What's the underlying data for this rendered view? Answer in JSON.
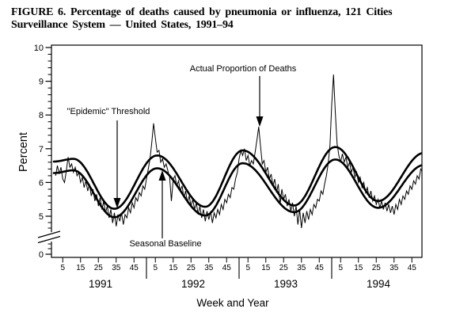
{
  "figure": {
    "caption_line1": "FIGURE 6. Percentage of deaths caused by pneumonia or influenza, 121 Cities",
    "caption_line2": "Surveillance System — United States, 1991–94"
  },
  "colors": {
    "ink": "#000000",
    "paper": "#ffffff"
  },
  "chart_data": {
    "type": "line",
    "title": "FIGURE 6. Percentage of deaths caused by pneumonia or influenza, 121 Cities Surveillance System — United States, 1991–94",
    "xlabel": "Week and Year",
    "ylabel": "Percent",
    "ylim": [
      0,
      10
    ],
    "y_ticks": [
      0,
      5,
      6,
      7,
      8,
      9,
      10
    ],
    "y_axis_break_between": [
      0,
      5
    ],
    "x_week_ticks": [
      5,
      15,
      25,
      35,
      45
    ],
    "years": [
      "1991",
      "1992",
      "1993",
      "1994"
    ],
    "weeks_per_year": 52,
    "x_unit": "surveillance week, consecutive weeks 1991-1994",
    "grid": false,
    "legend": "labels with arrows inside plot",
    "series": [
      {
        "name": "Actual Proportion of Deaths",
        "style": "thin-jagged",
        "x_start_week": 1,
        "values": [
          6.2,
          6.5,
          6.25,
          6.45,
          6.1,
          6.0,
          6.35,
          6.75,
          6.45,
          6.55,
          6.3,
          6.45,
          6.2,
          6.3,
          6.0,
          6.15,
          5.85,
          6.05,
          5.75,
          5.95,
          5.6,
          5.8,
          5.45,
          5.65,
          5.3,
          5.55,
          5.2,
          5.45,
          5.1,
          5.3,
          4.95,
          5.2,
          4.8,
          5.1,
          4.7,
          5.05,
          4.85,
          5.1,
          4.75,
          5.05,
          4.95,
          5.25,
          5.1,
          5.4,
          5.25,
          5.55,
          5.45,
          5.7,
          5.6,
          5.9,
          5.8,
          6.1,
          6.4,
          6.7,
          7.2,
          7.75,
          7.3,
          6.9,
          6.95,
          6.6,
          6.7,
          6.45,
          6.55,
          6.35,
          6.15,
          5.45,
          6.1,
          6.2,
          5.9,
          6.05,
          5.75,
          5.9,
          5.55,
          5.75,
          5.4,
          5.6,
          5.3,
          5.5,
          5.2,
          5.4,
          5.05,
          5.3,
          4.95,
          5.2,
          4.85,
          5.15,
          4.9,
          5.15,
          4.8,
          5.1,
          4.95,
          5.2,
          5.05,
          5.35,
          5.2,
          5.5,
          5.4,
          5.65,
          5.55,
          5.85,
          5.8,
          6.1,
          6.3,
          6.7,
          6.95,
          6.8,
          7.0,
          6.65,
          6.8,
          6.5,
          6.65,
          6.55,
          6.9,
          7.25,
          7.65,
          7.1,
          6.55,
          6.65,
          6.3,
          6.45,
          6.1,
          6.25,
          5.9,
          6.1,
          5.7,
          5.95,
          5.35,
          5.8,
          5.5,
          5.65,
          5.3,
          5.5,
          5.15,
          5.4,
          5.0,
          5.3,
          4.75,
          5.2,
          4.65,
          5.1,
          4.8,
          5.15,
          4.9,
          5.2,
          5.05,
          5.35,
          5.25,
          5.5,
          5.45,
          5.75,
          5.65,
          5.95,
          6.2,
          6.55,
          7.1,
          8.3,
          9.2,
          8.1,
          7.15,
          6.8,
          6.6,
          6.85,
          6.6,
          6.75,
          6.45,
          6.6,
          6.3,
          6.45,
          6.15,
          6.3,
          6.0,
          6.15,
          5.85,
          6.0,
          5.7,
          5.85,
          5.55,
          5.75,
          5.45,
          5.6,
          5.35,
          5.5,
          5.25,
          5.45,
          5.2,
          5.4,
          5.15,
          5.35,
          5.1,
          5.3,
          5.05,
          5.35,
          5.2,
          5.5,
          5.35,
          5.6,
          5.5,
          5.75,
          5.65,
          5.9,
          5.8,
          6.05,
          5.95,
          6.2,
          6.1,
          6.4,
          6.3,
          6.6
        ]
      },
      {
        "name": "\"Epidemic\" Threshold",
        "style": "thick-smooth-sinusoid",
        "keypoints_week_value": [
          [
            0,
            6.62
          ],
          [
            11,
            6.7
          ],
          [
            34,
            5.22
          ],
          [
            58,
            6.8
          ],
          [
            85,
            5.28
          ],
          [
            106,
            6.95
          ],
          [
            135,
            5.32
          ],
          [
            158,
            7.05
          ],
          [
            182,
            5.45
          ],
          [
            208,
            6.88
          ]
        ]
      },
      {
        "name": "Seasonal Baseline",
        "style": "thick-smooth-sinusoid",
        "keypoints_week_value": [
          [
            0,
            6.28
          ],
          [
            11,
            6.36
          ],
          [
            34,
            4.97
          ],
          [
            58,
            6.42
          ],
          [
            85,
            5.02
          ],
          [
            106,
            6.57
          ],
          [
            135,
            5.12
          ],
          [
            158,
            6.68
          ],
          [
            182,
            5.25
          ],
          [
            208,
            6.52
          ]
        ]
      }
    ],
    "annotations": [
      {
        "label": "Actual Proportion of Deaths",
        "direction": "down",
        "points_to": "spike of actual line, early 1993"
      },
      {
        "label": "\"Epidemic\" Threshold",
        "direction": "down",
        "points_to": "threshold curve summer 1991 trough"
      },
      {
        "label": "Seasonal Baseline",
        "direction": "up",
        "points_to": "baseline curve winter 1992 peak"
      }
    ]
  }
}
